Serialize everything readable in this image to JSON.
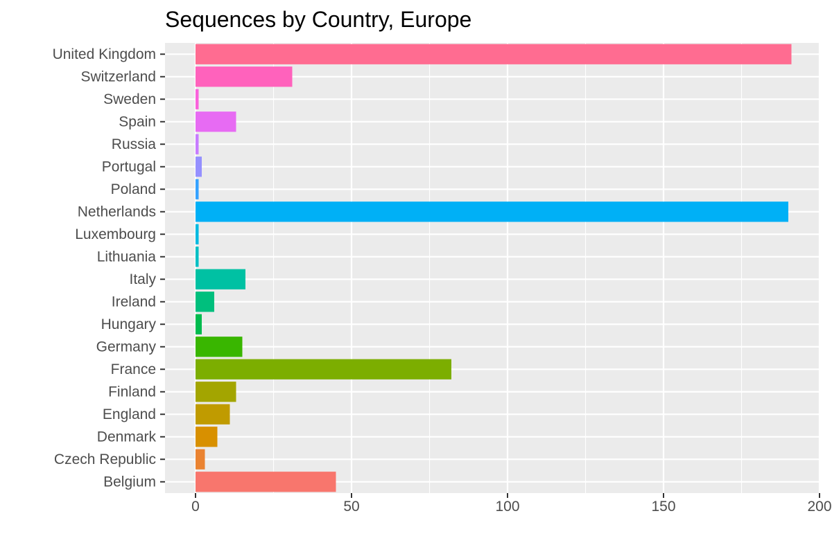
{
  "chart_data": {
    "type": "bar",
    "orientation": "horizontal",
    "title": "Sequences by Country, Europe",
    "xlabel": "",
    "ylabel": "",
    "xlim": [
      -9.5,
      200
    ],
    "xticks": [
      0,
      50,
      100,
      150,
      200
    ],
    "grid": true,
    "legend": "none",
    "categories": [
      "Belgium",
      "Czech Republic",
      "Denmark",
      "England",
      "Finland",
      "France",
      "Germany",
      "Hungary",
      "Ireland",
      "Italy",
      "Lithuania",
      "Luxembourg",
      "Netherlands",
      "Poland",
      "Portugal",
      "Russia",
      "Spain",
      "Sweden",
      "Switzerland",
      "United Kingdom"
    ],
    "values": [
      45,
      3,
      7,
      11,
      13,
      82,
      15,
      2,
      6,
      16,
      1,
      1,
      190,
      1,
      2,
      1,
      13,
      1,
      31,
      191
    ],
    "colors": [
      "#F8766D",
      "#EA8331",
      "#D89000",
      "#C09B00",
      "#A3A500",
      "#7CAE00",
      "#39B600",
      "#00BB4E",
      "#00BF7D",
      "#00C1A3",
      "#00BFC4",
      "#00BAE0",
      "#00B0F6",
      "#35A2FF",
      "#9590FF",
      "#C77CFF",
      "#E76BF3",
      "#FA62DB",
      "#FF62BC",
      "#FF6C91"
    ]
  }
}
